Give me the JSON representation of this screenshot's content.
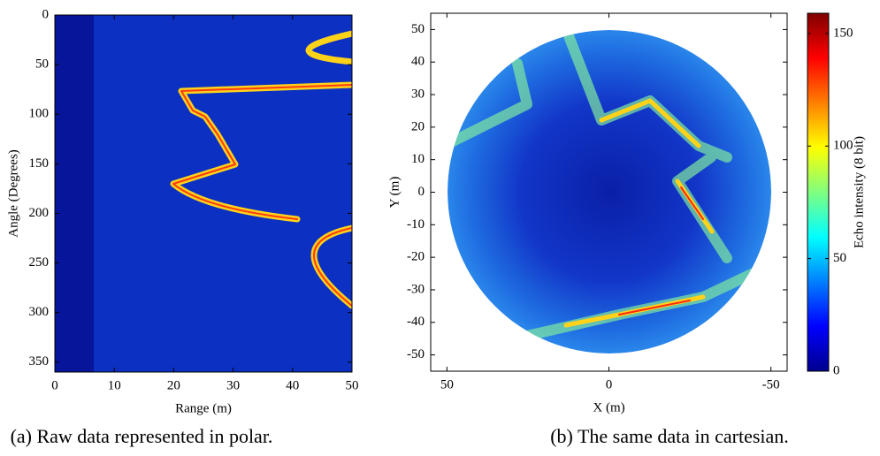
{
  "chart_data": [
    {
      "type": "heatmap",
      "xlabel": "Range (m)",
      "ylabel": "Angle (Degrees)",
      "xlim": [
        0,
        50
      ],
      "ylim": [
        360,
        0
      ],
      "xticks": [
        0,
        10,
        20,
        30,
        40,
        50
      ],
      "yticks": [
        0,
        50,
        100,
        150,
        200,
        250,
        300,
        350
      ],
      "caption": "(a) Raw data represented in polar."
    },
    {
      "type": "heatmap",
      "xlabel": "X (m)",
      "ylabel": "Y (m)",
      "xlim": [
        55,
        -55
      ],
      "ylim": [
        -55,
        55
      ],
      "xticks": [
        50,
        0,
        -50
      ],
      "yticks": [
        -50,
        -40,
        -30,
        -20,
        -10,
        0,
        10,
        20,
        30,
        40,
        50
      ],
      "caption": "(b) The same data in cartesian.",
      "colorbar": {
        "label": "Echo intensity (8 bit)",
        "lim": [
          0,
          159
        ],
        "ticks": [
          0,
          50,
          100,
          150
        ]
      }
    }
  ]
}
